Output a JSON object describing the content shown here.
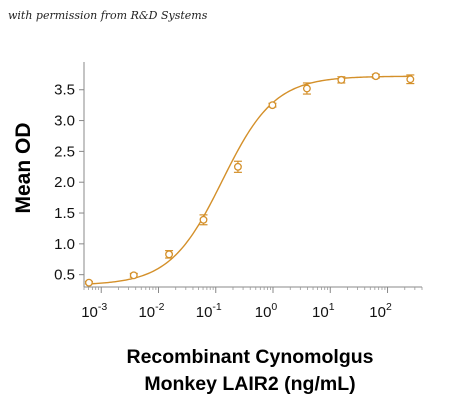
{
  "credit": "with permission from R&D Systems",
  "chart_data": {
    "type": "scatter",
    "color": "#d4902a",
    "xscale": "log",
    "xlim": [
      0.0005,
      400
    ],
    "ylim": [
      0.3,
      3.95
    ],
    "ylabel": "Mean OD",
    "xlabel": [
      "Recombinant Cynomolgus",
      "Monkey LAIR2 (ng/mL)"
    ],
    "yticks": [
      0.5,
      1.0,
      1.5,
      2.0,
      2.5,
      3.0,
      3.5
    ],
    "ytick_labels": [
      "0.5",
      "1.0",
      "1.5",
      "2.0",
      "2.5",
      "3.0",
      "3.5"
    ],
    "xticks": [
      {
        "value": 0.001,
        "base": "10",
        "exp": "-3"
      },
      {
        "value": 0.01,
        "base": "10",
        "exp": "-2"
      },
      {
        "value": 0.1,
        "base": "10",
        "exp": "-1"
      },
      {
        "value": 1,
        "base": "10",
        "exp": "0"
      },
      {
        "value": 10,
        "base": "10",
        "exp": "1"
      },
      {
        "value": 100,
        "base": "10",
        "exp": "2"
      }
    ],
    "points": [
      {
        "x": 0.00061,
        "y": 0.37,
        "err": 0.02
      },
      {
        "x": 0.0037,
        "y": 0.49,
        "err": 0.03
      },
      {
        "x": 0.0153,
        "y": 0.83,
        "err": 0.06
      },
      {
        "x": 0.0611,
        "y": 1.39,
        "err": 0.08
      },
      {
        "x": 0.244,
        "y": 2.25,
        "err": 0.09
      },
      {
        "x": 0.977,
        "y": 3.25,
        "err": 0.03
      },
      {
        "x": 3.91,
        "y": 3.52,
        "err": 0.09
      },
      {
        "x": 15.6,
        "y": 3.66,
        "err": 0.05
      },
      {
        "x": 62.5,
        "y": 3.72,
        "err": 0.03
      },
      {
        "x": 250,
        "y": 3.67,
        "err": 0.07
      }
    ],
    "fit": {
      "bottom": 0.33,
      "top": 3.72,
      "ec50": 0.13,
      "hill": 0.95
    }
  }
}
